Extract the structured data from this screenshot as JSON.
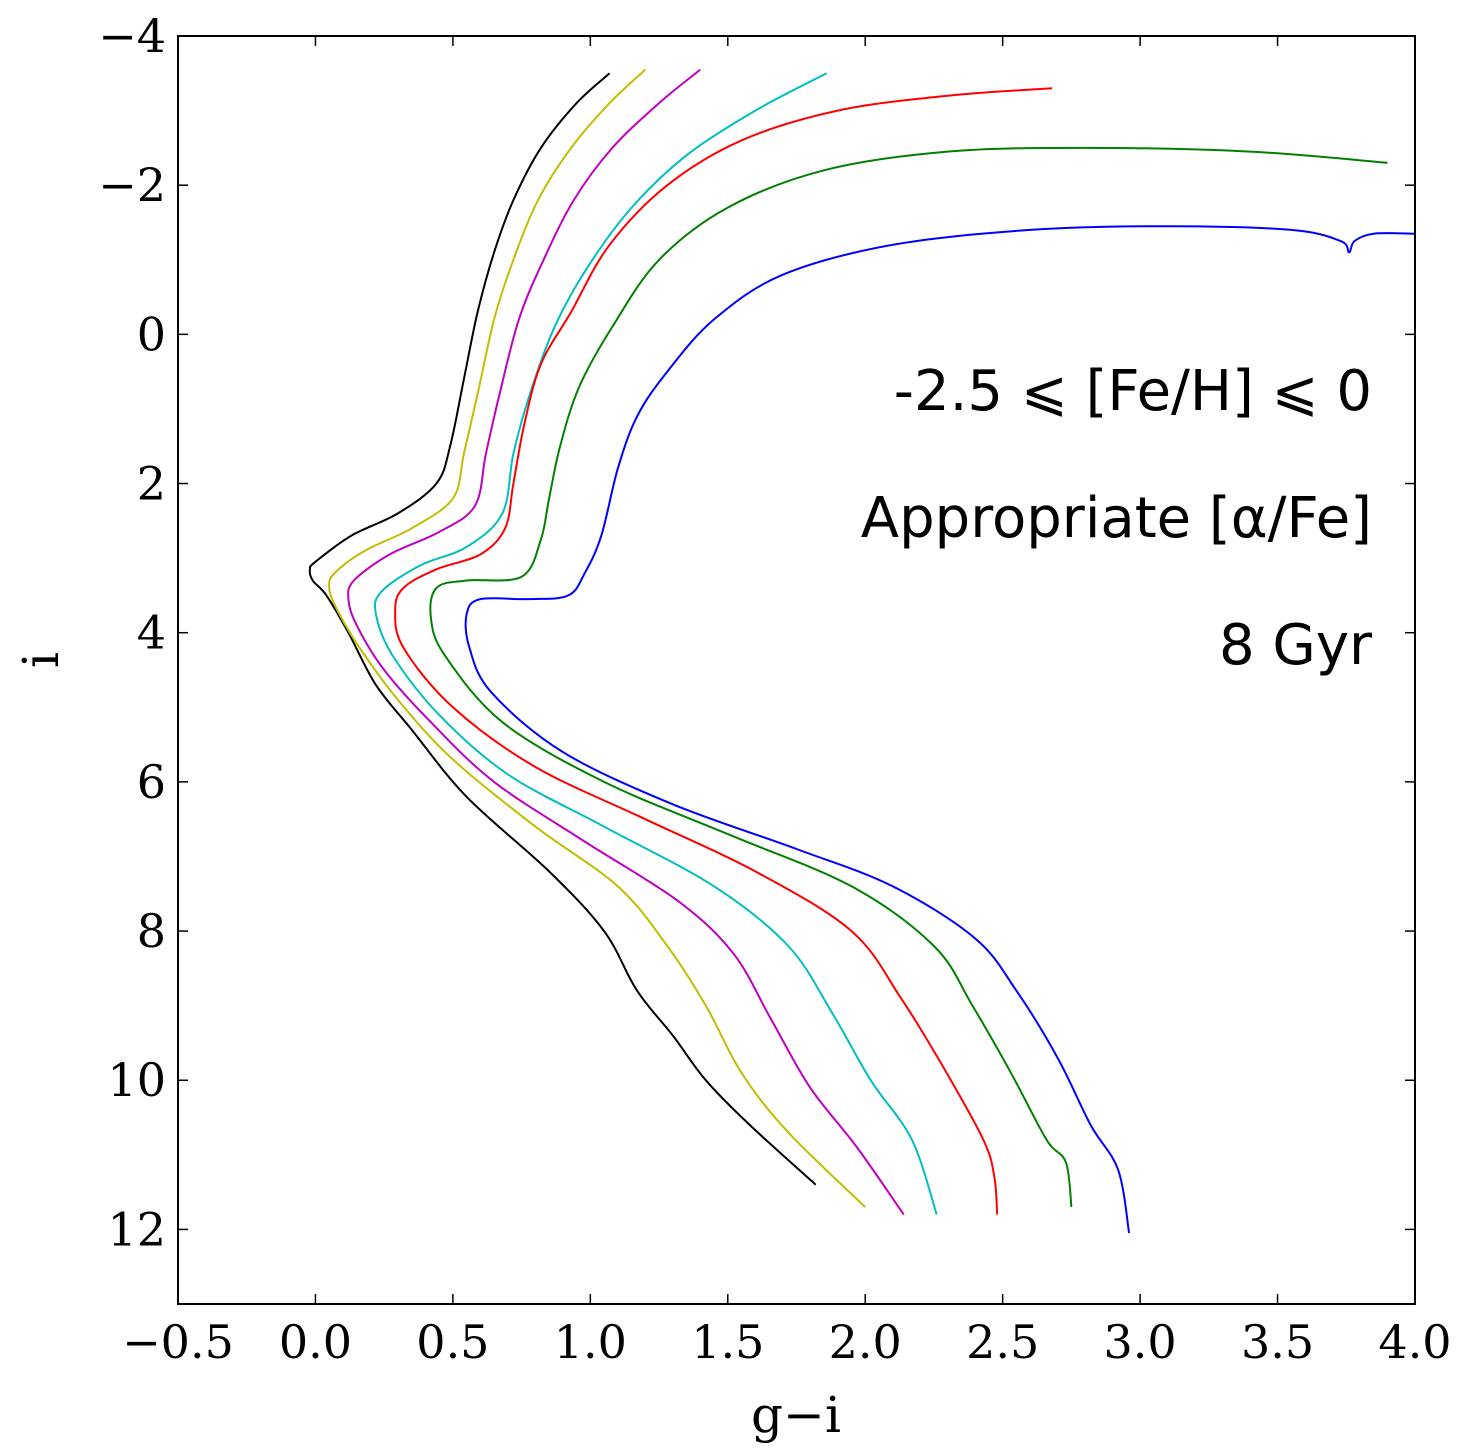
{
  "chart_data": {
    "type": "line",
    "title": "",
    "xlabel": "g−i",
    "ylabel": "i",
    "xlim": [
      -0.5,
      4.0
    ],
    "ylim": [
      13.0,
      -4.0
    ],
    "y_inverted": true,
    "grid": false,
    "x_ticks": [
      -0.5,
      0.0,
      0.5,
      1.0,
      1.5,
      2.0,
      2.5,
      3.0,
      3.5,
      4.0
    ],
    "x_tick_labels": [
      "−0.5",
      "0.0",
      "0.5",
      "1.0",
      "1.5",
      "2.0",
      "2.5",
      "3.0",
      "3.5",
      "4.0"
    ],
    "y_ticks": [
      -4,
      -2,
      0,
      2,
      4,
      6,
      8,
      10,
      12
    ],
    "y_tick_labels": [
      "−4",
      "−2",
      "0",
      "2",
      "4",
      "6",
      "8",
      "10",
      "12"
    ],
    "annotations": [
      "-2.5 ⩽ [Fe/H] ⩽  0",
      "Appropriate [α/Fe]",
      "8 Gyr"
    ],
    "series": [
      {
        "color": "#000000",
        "points": [
          [
            1.07,
            -3.5
          ],
          [
            0.95,
            -3.1
          ],
          [
            0.82,
            -2.5
          ],
          [
            0.72,
            -1.8
          ],
          [
            0.65,
            -1.1
          ],
          [
            0.59,
            -0.3
          ],
          [
            0.54,
            0.6
          ],
          [
            0.49,
            1.5
          ],
          [
            0.44,
            2.0
          ],
          [
            0.3,
            2.4
          ],
          [
            0.13,
            2.7
          ],
          [
            0.0,
            3.05
          ],
          [
            -0.02,
            3.15
          ],
          [
            -0.01,
            3.3
          ],
          [
            0.04,
            3.5
          ],
          [
            0.12,
            4.0
          ],
          [
            0.22,
            4.7
          ],
          [
            0.35,
            5.3
          ],
          [
            0.55,
            6.2
          ],
          [
            0.85,
            7.2
          ],
          [
            1.05,
            8.0
          ],
          [
            1.17,
            8.8
          ],
          [
            1.3,
            9.4
          ],
          [
            1.42,
            10.0
          ],
          [
            1.58,
            10.6
          ],
          [
            1.82,
            11.4
          ]
        ]
      },
      {
        "color": "#bfbf00",
        "points": [
          [
            1.2,
            -3.55
          ],
          [
            1.07,
            -3.1
          ],
          [
            0.93,
            -2.5
          ],
          [
            0.81,
            -1.8
          ],
          [
            0.72,
            -1.0
          ],
          [
            0.65,
            -0.2
          ],
          [
            0.59,
            0.8
          ],
          [
            0.54,
            1.6
          ],
          [
            0.5,
            2.2
          ],
          [
            0.35,
            2.6
          ],
          [
            0.18,
            2.9
          ],
          [
            0.07,
            3.2
          ],
          [
            0.05,
            3.4
          ],
          [
            0.08,
            3.7
          ],
          [
            0.16,
            4.2
          ],
          [
            0.3,
            4.9
          ],
          [
            0.5,
            5.7
          ],
          [
            0.8,
            6.6
          ],
          [
            1.1,
            7.4
          ],
          [
            1.28,
            8.2
          ],
          [
            1.42,
            9.0
          ],
          [
            1.55,
            9.9
          ],
          [
            1.72,
            10.7
          ],
          [
            2.0,
            11.7
          ]
        ]
      },
      {
        "color": "#bf00bf",
        "points": [
          [
            1.4,
            -3.55
          ],
          [
            1.25,
            -3.1
          ],
          [
            1.08,
            -2.5
          ],
          [
            0.94,
            -1.8
          ],
          [
            0.83,
            -1.0
          ],
          [
            0.74,
            -0.2
          ],
          [
            0.67,
            0.8
          ],
          [
            0.62,
            1.6
          ],
          [
            0.58,
            2.3
          ],
          [
            0.45,
            2.65
          ],
          [
            0.27,
            2.95
          ],
          [
            0.14,
            3.3
          ],
          [
            0.12,
            3.55
          ],
          [
            0.15,
            3.9
          ],
          [
            0.25,
            4.5
          ],
          [
            0.42,
            5.2
          ],
          [
            0.65,
            6.0
          ],
          [
            0.98,
            6.8
          ],
          [
            1.32,
            7.6
          ],
          [
            1.52,
            8.3
          ],
          [
            1.66,
            9.2
          ],
          [
            1.8,
            10.1
          ],
          [
            1.97,
            10.9
          ],
          [
            2.14,
            11.8
          ]
        ]
      },
      {
        "color": "#00bfbf",
        "points": [
          [
            1.86,
            -3.5
          ],
          [
            1.6,
            -3.0
          ],
          [
            1.35,
            -2.4
          ],
          [
            1.15,
            -1.7
          ],
          [
            0.99,
            -0.9
          ],
          [
            0.87,
            -0.1
          ],
          [
            0.78,
            0.8
          ],
          [
            0.72,
            1.6
          ],
          [
            0.68,
            2.4
          ],
          [
            0.55,
            2.85
          ],
          [
            0.38,
            3.1
          ],
          [
            0.24,
            3.45
          ],
          [
            0.22,
            3.75
          ],
          [
            0.28,
            4.3
          ],
          [
            0.45,
            5.1
          ],
          [
            0.7,
            5.9
          ],
          [
            1.05,
            6.6
          ],
          [
            1.45,
            7.4
          ],
          [
            1.72,
            8.2
          ],
          [
            1.88,
            9.1
          ],
          [
            2.02,
            10.0
          ],
          [
            2.17,
            10.8
          ],
          [
            2.26,
            11.8
          ]
        ]
      },
      {
        "color": "#ff0000",
        "points": [
          [
            2.68,
            -3.3
          ],
          [
            2.3,
            -3.2
          ],
          [
            1.9,
            -3.0
          ],
          [
            1.55,
            -2.6
          ],
          [
            1.28,
            -2.0
          ],
          [
            1.07,
            -1.2
          ],
          [
            0.93,
            -0.3
          ],
          [
            0.82,
            0.4
          ],
          [
            0.76,
            1.2
          ],
          [
            0.72,
            2.0
          ],
          [
            0.69,
            2.6
          ],
          [
            0.6,
            2.95
          ],
          [
            0.44,
            3.15
          ],
          [
            0.32,
            3.4
          ],
          [
            0.29,
            3.7
          ],
          [
            0.32,
            4.2
          ],
          [
            0.5,
            5.0
          ],
          [
            0.8,
            5.8
          ],
          [
            1.2,
            6.5
          ],
          [
            1.6,
            7.2
          ],
          [
            1.95,
            8.0
          ],
          [
            2.13,
            8.9
          ],
          [
            2.28,
            9.8
          ],
          [
            2.43,
            10.8
          ],
          [
            2.47,
            11.3
          ],
          [
            2.48,
            11.8
          ]
        ]
      },
      {
        "color": "#008000",
        "points": [
          [
            3.9,
            -2.3
          ],
          [
            3.4,
            -2.45
          ],
          [
            2.8,
            -2.5
          ],
          [
            2.3,
            -2.45
          ],
          [
            1.85,
            -2.2
          ],
          [
            1.5,
            -1.7
          ],
          [
            1.25,
            -1.0
          ],
          [
            1.08,
            -0.1
          ],
          [
            0.96,
            0.7
          ],
          [
            0.89,
            1.5
          ],
          [
            0.85,
            2.2
          ],
          [
            0.82,
            2.75
          ],
          [
            0.75,
            3.25
          ],
          [
            0.55,
            3.3
          ],
          [
            0.44,
            3.4
          ],
          [
            0.42,
            3.8
          ],
          [
            0.47,
            4.3
          ],
          [
            0.68,
            5.2
          ],
          [
            1.05,
            6.0
          ],
          [
            1.5,
            6.7
          ],
          [
            1.95,
            7.4
          ],
          [
            2.25,
            8.2
          ],
          [
            2.39,
            9.0
          ],
          [
            2.53,
            9.9
          ],
          [
            2.66,
            10.8
          ],
          [
            2.73,
            11.1
          ],
          [
            2.75,
            11.7
          ]
        ]
      },
      {
        "color": "#0000ff",
        "points": [
          [
            4.0,
            -1.35
          ],
          [
            3.85,
            -1.35
          ],
          [
            3.78,
            -1.25
          ],
          [
            3.76,
            -1.1
          ],
          [
            3.73,
            -1.25
          ],
          [
            3.55,
            -1.4
          ],
          [
            3.1,
            -1.45
          ],
          [
            2.6,
            -1.4
          ],
          [
            2.1,
            -1.2
          ],
          [
            1.7,
            -0.8
          ],
          [
            1.45,
            -0.2
          ],
          [
            1.28,
            0.5
          ],
          [
            1.17,
            1.1
          ],
          [
            1.1,
            1.8
          ],
          [
            1.04,
            2.7
          ],
          [
            0.98,
            3.2
          ],
          [
            0.92,
            3.5
          ],
          [
            0.78,
            3.55
          ],
          [
            0.6,
            3.55
          ],
          [
            0.55,
            3.75
          ],
          [
            0.56,
            4.2
          ],
          [
            0.64,
            4.8
          ],
          [
            0.9,
            5.6
          ],
          [
            1.3,
            6.3
          ],
          [
            1.75,
            6.9
          ],
          [
            2.1,
            7.4
          ],
          [
            2.4,
            8.1
          ],
          [
            2.55,
            8.8
          ],
          [
            2.7,
            9.7
          ],
          [
            2.82,
            10.6
          ],
          [
            2.92,
            11.2
          ],
          [
            2.96,
            12.05
          ]
        ]
      }
    ]
  }
}
